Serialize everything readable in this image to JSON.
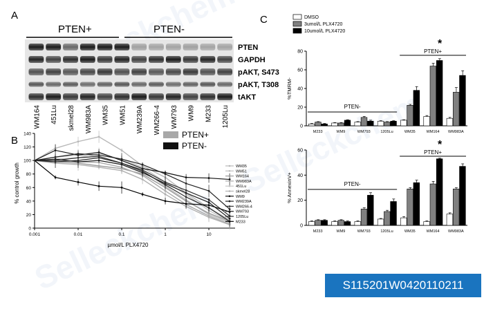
{
  "panels": {
    "a": "A",
    "b": "B",
    "c": "C"
  },
  "blot": {
    "group_labels": [
      "PTEN+",
      "PTEN-"
    ],
    "row_labels": [
      "PTEN",
      "GAPDH",
      "pAKT, S473",
      "pAKT, T308",
      "tAKT"
    ],
    "lanes": [
      "WM164",
      "451Lu",
      "skmel28",
      "WM983A",
      "WM35",
      "WM51",
      "WM239A",
      "WM266-4",
      "WM793",
      "WM9",
      "M233",
      "1205Lu"
    ]
  },
  "watermark": "Selleckchem",
  "catalog": "S115201W0420110211",
  "chart_data": [
    {
      "type": "line",
      "panel": "B",
      "xlabel": "µmol/L PLX4720",
      "ylabel": "% control growth",
      "xscale": "log",
      "xlim": [
        0.001,
        40
      ],
      "ylim": [
        0,
        140
      ],
      "xticks": [
        0.001,
        0.01,
        0.1,
        1,
        10
      ],
      "xtick_labels": [
        "0.001",
        "0.01",
        "0.1",
        "1",
        "10"
      ],
      "yticks": [
        0,
        20,
        40,
        60,
        80,
        100,
        120,
        140
      ],
      "legend": {
        "entries": [
          "PTEN+",
          "PTEN-"
        ],
        "colors": [
          "#a8a8a8",
          "#111111"
        ],
        "placement": "top-right"
      },
      "x": [
        0.001,
        0.003,
        0.01,
        0.03,
        0.1,
        0.3,
        1,
        3,
        10,
        30
      ],
      "series": [
        {
          "name": "WM35",
          "color": "#b8b8b8",
          "values": [
            100,
            118,
            128,
            135,
            115,
            92,
            75,
            52,
            30,
            12
          ]
        },
        {
          "name": "WM51",
          "color": "#bdbdbd",
          "values": [
            100,
            105,
            108,
            106,
            96,
            85,
            62,
            42,
            20,
            8
          ]
        },
        {
          "name": "WM164",
          "color": "#999999",
          "values": [
            100,
            98,
            96,
            92,
            88,
            80,
            60,
            40,
            22,
            10
          ]
        },
        {
          "name": "WM983A",
          "color": "#aaaaaa",
          "values": [
            100,
            100,
            98,
            97,
            90,
            78,
            55,
            35,
            18,
            6
          ]
        },
        {
          "name": "451Lu",
          "color": "#c4c4c4",
          "values": [
            100,
            102,
            104,
            110,
            102,
            90,
            68,
            50,
            26,
            10
          ]
        },
        {
          "name": "skmel28",
          "color": "#b0b0b0",
          "values": [
            100,
            96,
            94,
            90,
            85,
            72,
            50,
            32,
            16,
            5
          ]
        },
        {
          "name": "WM9",
          "color": "#111111",
          "values": [
            100,
            115,
            108,
            112,
            100,
            88,
            82,
            75,
            74,
            72
          ]
        },
        {
          "name": "WM239A",
          "color": "#222222",
          "values": [
            100,
            105,
            110,
            108,
            102,
            94,
            80,
            66,
            55,
            28
          ]
        },
        {
          "name": "WM266-4",
          "color": "#333333",
          "values": [
            100,
            100,
            104,
            106,
            96,
            86,
            68,
            56,
            42,
            18
          ]
        },
        {
          "name": "WM793",
          "color": "#1a1a1a",
          "values": [
            100,
            102,
            98,
            100,
            94,
            82,
            66,
            52,
            38,
            14
          ]
        },
        {
          "name": "1205Lu",
          "color": "#2a2a2a",
          "values": [
            100,
            98,
            100,
            104,
            96,
            84,
            64,
            46,
            30,
            10
          ]
        },
        {
          "name": "M233",
          "color": "#000000",
          "values": [
            100,
            75,
            68,
            62,
            60,
            50,
            40,
            36,
            34,
            24
          ]
        }
      ]
    },
    {
      "type": "bar",
      "panel": "C-top",
      "ylabel": "%TMRM-",
      "ylim": [
        0,
        80
      ],
      "yticks": [
        0,
        20,
        40,
        60,
        80
      ],
      "categories": [
        "M233",
        "WM9",
        "WM793",
        "1205Lu",
        "WM35",
        "WM164",
        "WM983A"
      ],
      "legend": {
        "entries": [
          "DMSO",
          "3umol/L PLX4720",
          "10umol/L PLX4720"
        ],
        "colors": [
          "#ffffff",
          "#808080",
          "#000000"
        ],
        "placement": "top-left"
      },
      "series": [
        {
          "name": "DMSO",
          "values": [
            2,
            3,
            4,
            5,
            6,
            10,
            8
          ]
        },
        {
          "name": "3umol/L PLX4720",
          "values": [
            4,
            3,
            9,
            4,
            22,
            64,
            36
          ]
        },
        {
          "name": "10umol/L PLX4720",
          "values": [
            2,
            6,
            5,
            5,
            38,
            70,
            54
          ]
        }
      ],
      "errors": [
        [
          0.5,
          0.5,
          0.5,
          0.5,
          0.5,
          1,
          1
        ],
        [
          0.5,
          0.5,
          1,
          0.5,
          1,
          3,
          5
        ],
        [
          0.5,
          0.5,
          1,
          0.5,
          4,
          2,
          5
        ]
      ],
      "annotations": [
        {
          "text": "PTEN-",
          "span": [
            "M233",
            "1205Lu"
          ]
        },
        {
          "text": "PTEN+",
          "span": [
            "WM35",
            "WM983A"
          ]
        },
        {
          "text": "*",
          "span": [
            "WM35",
            "WM983A"
          ]
        }
      ]
    },
    {
      "type": "bar",
      "panel": "C-bottom",
      "ylabel": "% AnnexinV+",
      "ylim": [
        0,
        60
      ],
      "yticks": [
        0,
        20,
        40,
        60
      ],
      "categories": [
        "M233",
        "WM9",
        "WM793",
        "1205Lu",
        "WM35",
        "WM164",
        "WM983A"
      ],
      "series": [
        {
          "name": "DMSO",
          "values": [
            3,
            3,
            3,
            5,
            6,
            3,
            9
          ]
        },
        {
          "name": "3umol/L PLX4720",
          "values": [
            4,
            4,
            13,
            11,
            29,
            33,
            29
          ]
        },
        {
          "name": "10umol/L PLX4720",
          "values": [
            4,
            3,
            24,
            19,
            34,
            53,
            47
          ]
        }
      ],
      "errors": [
        [
          0.5,
          0.5,
          0.5,
          0.5,
          1,
          0.5,
          1
        ],
        [
          0.5,
          0.5,
          1,
          1,
          1,
          2,
          1
        ],
        [
          0.5,
          0.5,
          2,
          2,
          2,
          0.5,
          2
        ]
      ],
      "annotations": [
        {
          "text": "PTEN-",
          "span": [
            "M233",
            "1205Lu"
          ]
        },
        {
          "text": "PTEN+",
          "span": [
            "WM35",
            "WM983A"
          ]
        },
        {
          "text": "*",
          "span": [
            "WM35",
            "WM983A"
          ]
        }
      ]
    }
  ]
}
